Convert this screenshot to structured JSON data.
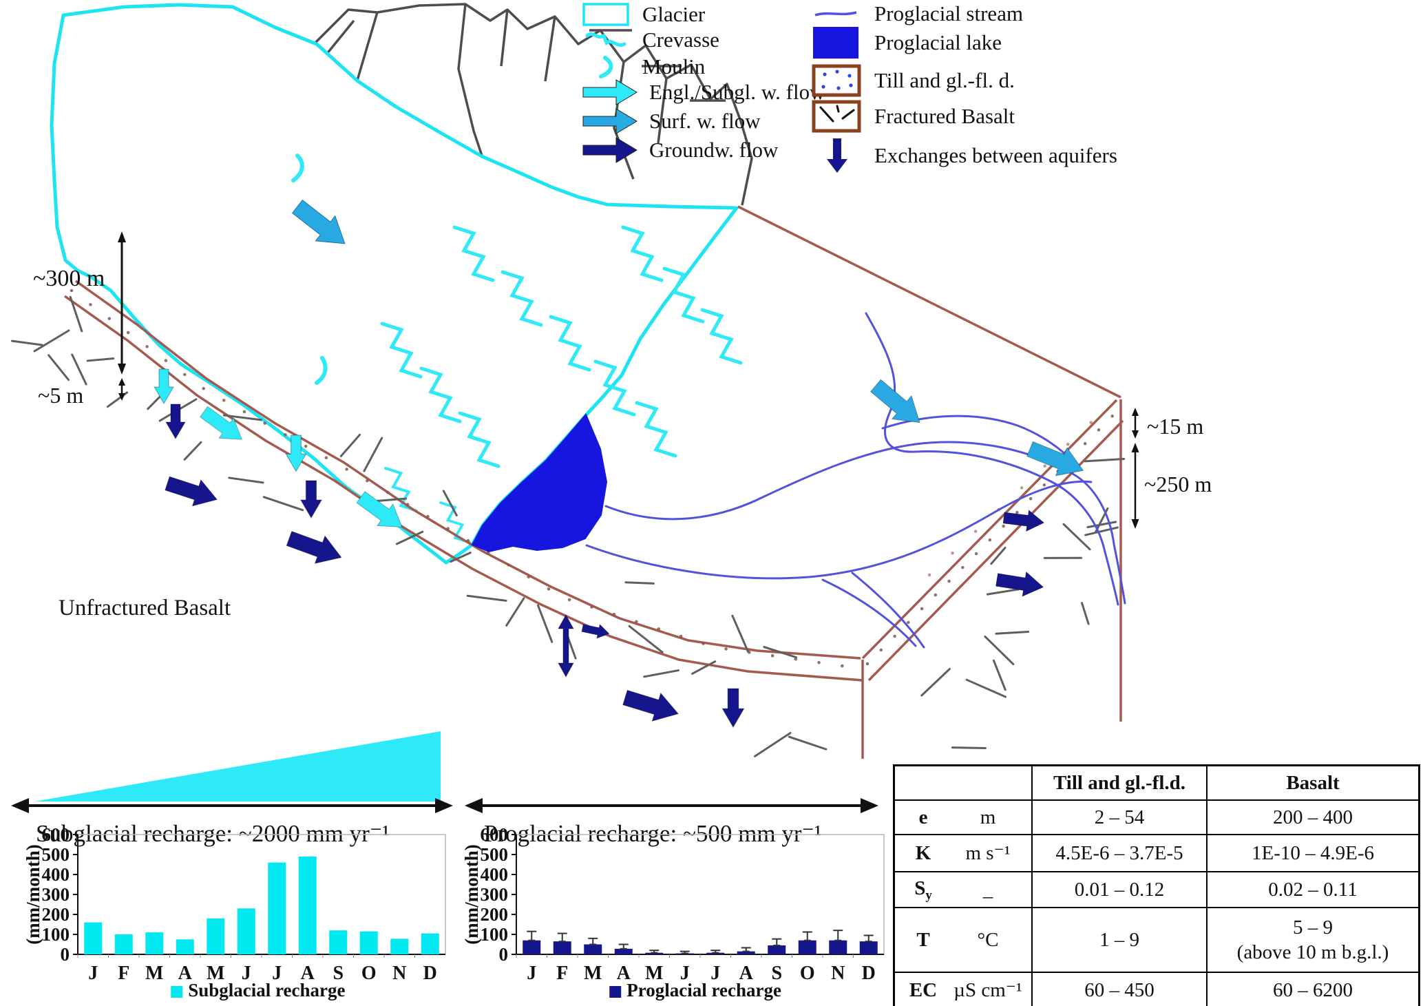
{
  "figure": {
    "labels": {
      "unfractured_basalt": "Unfractured Basalt",
      "subglacial_recharge": "Subglacial recharge: ~2000 mm yr⁻¹",
      "proglacial_recharge": "Proglacial recharge: ~500 mm yr⁻¹"
    },
    "dimensions": {
      "ice_thickness": "~300 m",
      "till_left": "~5 m",
      "till_right": "~15 m",
      "basalt_right": "~250 m"
    }
  },
  "legend": {
    "col1": [
      "Glacier",
      "Crevasse",
      "Moulin",
      "Engl./Subgl. w. flow",
      "Surf. w. flow",
      "Groundw. flow"
    ],
    "col2": [
      "Proglacial stream",
      "Proglacial lake",
      "Till and gl.-fl. d.",
      "Fractured Basalt",
      "Exchanges between aquifers"
    ]
  },
  "colors": {
    "glacier_cyan": "#1de4f2",
    "arrow_cyan": "#2ee9f7",
    "surface_flow_blue": "#29a9e1",
    "groundwater_navy": "#16168c",
    "lake_blue": "#1616e0",
    "stream_blue": "#5252de",
    "till_outline_brown": "#a55a50",
    "legend_box_brown": "#8c3f1c",
    "mountain_gray": "#4d4d4d",
    "fracture_gray": "#5f5f5f"
  },
  "chart_data": [
    {
      "type": "bar",
      "categories": [
        "J",
        "F",
        "M",
        "A",
        "M",
        "J",
        "J",
        "A",
        "S",
        "O",
        "N",
        "D"
      ],
      "values": [
        160,
        100,
        110,
        75,
        180,
        230,
        460,
        490,
        120,
        115,
        78,
        105
      ],
      "errors": null,
      "title": "",
      "xlabel": "",
      "ylabel": "(mm/month)",
      "ylim": [
        0,
        600
      ],
      "ystep": 100,
      "legend": "Subglacial recharge",
      "legend_position": "bottom",
      "grid": false,
      "color": "#00e8f0"
    },
    {
      "type": "bar",
      "categories": [
        "J",
        "F",
        "M",
        "A",
        "M",
        "J",
        "J",
        "A",
        "S",
        "O",
        "N",
        "D"
      ],
      "values": [
        70,
        65,
        50,
        28,
        8,
        5,
        8,
        15,
        45,
        70,
        70,
        65
      ],
      "errors": [
        45,
        40,
        30,
        22,
        12,
        10,
        12,
        18,
        32,
        42,
        50,
        30
      ],
      "title": "",
      "xlabel": "",
      "ylabel": "(mm/month)",
      "ylim": [
        0,
        600
      ],
      "ystep": 100,
      "legend": "Proglacial recharge",
      "legend_position": "bottom",
      "grid": false,
      "color": "#16168c"
    }
  ],
  "table": {
    "headers": [
      "",
      "Till and gl.-fl.d.",
      "Basalt"
    ],
    "rows": [
      {
        "param": "e",
        "sub": "",
        "unit": "m",
        "till": "2 – 54",
        "basalt": "200 – 400"
      },
      {
        "param": "K",
        "sub": "",
        "unit": "m s⁻¹",
        "till": "4.5E-6 – 3.7E-5",
        "basalt": "1E-10 – 4.9E-6"
      },
      {
        "param": "S",
        "sub": "y",
        "unit": "_",
        "till": "0.01 – 0.12",
        "basalt": "0.02 – 0.11"
      },
      {
        "param": "T",
        "sub": "",
        "unit": "°C",
        "till": "1 – 9",
        "basalt": "5 – 9\n(above 10 m b.g.l.)"
      },
      {
        "param": "EC",
        "sub": "",
        "unit": "µS cm⁻¹",
        "till": "60 – 450",
        "basalt": "60 – 6200"
      }
    ]
  }
}
